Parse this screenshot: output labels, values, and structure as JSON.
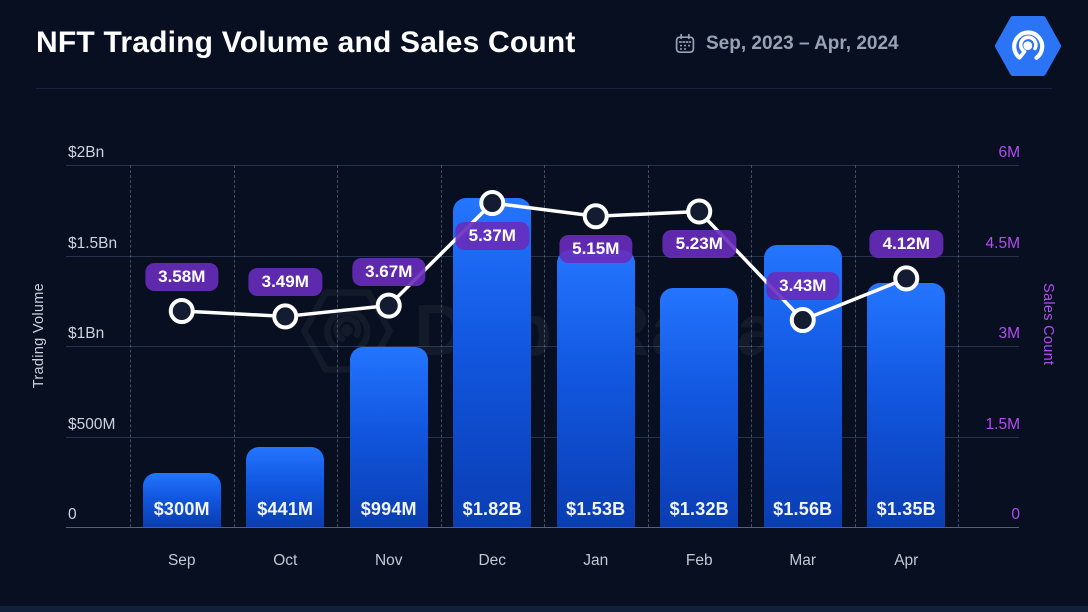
{
  "header": {
    "title": "NFT Trading Volume and Sales Count",
    "date_range": "Sep, 2023 – Apr, 2024"
  },
  "watermark": {
    "text": "DappRadar"
  },
  "chart_data": {
    "type": "bar",
    "title": "NFT Trading Volume and Sales Count",
    "subtitle_period": "Sep, 2023 – Apr, 2024",
    "categories": [
      "Sep",
      "Oct",
      "Nov",
      "Dec",
      "Jan",
      "Feb",
      "Mar",
      "Apr"
    ],
    "series": [
      {
        "name": "Trading Volume",
        "type": "bar",
        "axis": "left",
        "values_millions_usd": [
          300,
          441,
          994,
          1820,
          1530,
          1320,
          1560,
          1350
        ],
        "data_labels": [
          "$300M",
          "$441M",
          "$994M",
          "$1.82B",
          "$1.53B",
          "$1.32B",
          "$1.56B",
          "$1.35B"
        ]
      },
      {
        "name": "Sales Count",
        "type": "line",
        "axis": "right",
        "values_millions": [
          3.58,
          3.49,
          3.67,
          5.37,
          5.15,
          5.23,
          3.43,
          4.12
        ],
        "data_labels": [
          "3.58M",
          "3.49M",
          "3.67M",
          "5.37M",
          "5.15M",
          "5.23M",
          "3.43M",
          "4.12M"
        ],
        "label_position": [
          "above",
          "above",
          "above",
          "below",
          "below",
          "below",
          "above",
          "above"
        ]
      }
    ],
    "left_axis": {
      "label": "Trading Volume",
      "ticks": [
        "$2Bn",
        "$1.5Bn",
        "$1Bn",
        "$500M",
        "0"
      ],
      "range_millions_usd": [
        0,
        2000
      ]
    },
    "right_axis": {
      "label": "Sales Count",
      "ticks": [
        "6M",
        "4.5M",
        "3M",
        "1.5M",
        "0"
      ],
      "range_millions": [
        0,
        6
      ]
    },
    "grid": {
      "horizontal_solid": true,
      "vertical_dashed": true,
      "legend": "none"
    },
    "colors": {
      "background": "#070f20",
      "bar_gradient_top": "#2475ff",
      "bar_gradient_bottom": "#0a3db2",
      "line": "#ffffff",
      "marker_fill": "#131c30",
      "badge_purple": "#5e2a9d",
      "right_axis_purple": "#b44df2",
      "left_tick_gray": "#ccd4e2",
      "logo_blue": "#2b74f5"
    }
  }
}
